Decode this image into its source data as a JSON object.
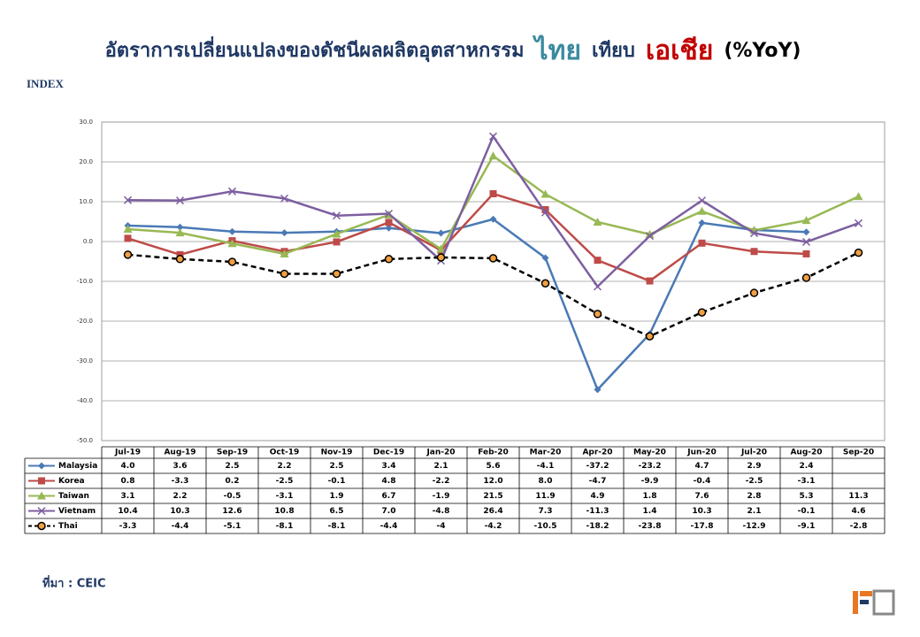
{
  "chart_data": {
    "type": "line",
    "title_parts": [
      {
        "text": "อัตราการเปลี่ยนแปลงของดัชนีผลผลิตอุตสาหกรรม",
        "color": "#1f3864"
      },
      {
        "text": "ไทย",
        "color": "#3a8aa0"
      },
      {
        "text": "เทียบ",
        "color": "#1f3864"
      },
      {
        "text": "เอเชีย",
        "color": "#c00000"
      },
      {
        "text": "(%YoY)",
        "color": "#000000"
      }
    ],
    "y_label": "INDEX",
    "source": "ที่มา : CEIC",
    "categories": [
      "Jul-19",
      "Aug-19",
      "Sep-19",
      "Oct-19",
      "Nov-19",
      "Dec-19",
      "Jan-20",
      "Feb-20",
      "Mar-20",
      "Apr-20",
      "May-20",
      "Jun-20",
      "Jul-20",
      "Aug-20",
      "Sep-20"
    ],
    "ylim": [
      -50,
      30
    ],
    "yticks": [
      {
        "value": -50,
        "label": "-50.0"
      },
      {
        "value": -40,
        "label": "-40.0"
      },
      {
        "value": -30,
        "label": "-30.0"
      },
      {
        "value": -20,
        "label": "-20.0"
      },
      {
        "value": -10,
        "label": "-10.0"
      },
      {
        "value": 0,
        "label": "0.0"
      },
      {
        "value": 10,
        "label": "10.0"
      },
      {
        "value": 20,
        "label": "20.0"
      },
      {
        "value": 30,
        "label": "30.0"
      }
    ],
    "grid": true,
    "series": [
      {
        "name": "Malaysia",
        "color": "#4a7ab5",
        "marker": "diamond",
        "dash": false,
        "values": [
          4.0,
          3.6,
          2.5,
          2.2,
          2.5,
          3.4,
          2.1,
          5.6,
          -4.1,
          -37.2,
          -23.2,
          4.7,
          2.9,
          2.4,
          null
        ],
        "value_labels": [
          "4.0",
          "3.6",
          "2.5",
          "2.2",
          "2.5",
          "3.4",
          "2.1",
          "5.6",
          "-4.1",
          "-37.2",
          "-23.2",
          "4.7",
          "2.9",
          "2.4",
          null
        ]
      },
      {
        "name": "Korea",
        "color": "#be4b48",
        "marker": "square",
        "dash": false,
        "values": [
          0.8,
          -3.3,
          0.2,
          -2.5,
          -0.1,
          4.8,
          -2.2,
          12.0,
          8.0,
          -4.7,
          -9.9,
          -0.4,
          -2.5,
          -3.1,
          null
        ],
        "value_labels": [
          "0.8",
          "-3.3",
          "0.2",
          "-2.5",
          "-0.1",
          "4.8",
          "-2.2",
          "12.0",
          "8.0",
          "-4.7",
          "-9.9",
          "-0.4",
          "-2.5",
          "-3.1",
          null
        ]
      },
      {
        "name": "Taiwan",
        "color": "#98b954",
        "marker": "triangle",
        "dash": false,
        "values": [
          3.1,
          2.2,
          -0.5,
          -3.1,
          1.9,
          6.7,
          -1.9,
          21.5,
          11.9,
          4.9,
          1.8,
          7.6,
          2.8,
          5.3,
          11.3
        ],
        "value_labels": [
          "3.1",
          "2.2",
          "-0.5",
          "-3.1",
          "1.9",
          "6.7",
          "-1.9",
          "21.5",
          "11.9",
          "4.9",
          "1.8",
          "7.6",
          "2.8",
          "5.3",
          "11.3"
        ]
      },
      {
        "name": "Vietnam",
        "color": "#7d5fa0",
        "marker": "cross",
        "dash": false,
        "values": [
          10.4,
          10.3,
          12.6,
          10.8,
          6.5,
          7.0,
          -4.8,
          26.4,
          7.3,
          -11.3,
          1.4,
          10.3,
          2.1,
          -0.1,
          4.6
        ],
        "value_labels": [
          "10.4",
          "10.3",
          "12.6",
          "10.8",
          "6.5",
          "7.0",
          "-4.8",
          "26.4",
          "7.3",
          "-11.3",
          "1.4",
          "10.3",
          "2.1",
          "-0.1",
          "4.6"
        ]
      },
      {
        "name": "Thai",
        "color": "#000000",
        "marker": "circle",
        "dash": true,
        "values": [
          -3.3,
          -4.4,
          -5.1,
          -8.1,
          -8.1,
          -4.4,
          -4,
          -4.2,
          -10.5,
          -18.2,
          -23.8,
          -17.8,
          -12.9,
          -9.1,
          -2.8
        ],
        "value_labels": [
          "-3.3",
          "-4.4",
          "-5.1",
          "-8.1",
          "-8.1",
          "-4.4",
          "-4",
          "-4.2",
          "-10.5",
          "-18.2",
          "-23.8",
          "-17.8",
          "-12.9",
          "-9.1",
          "-2.8"
        ]
      }
    ]
  }
}
